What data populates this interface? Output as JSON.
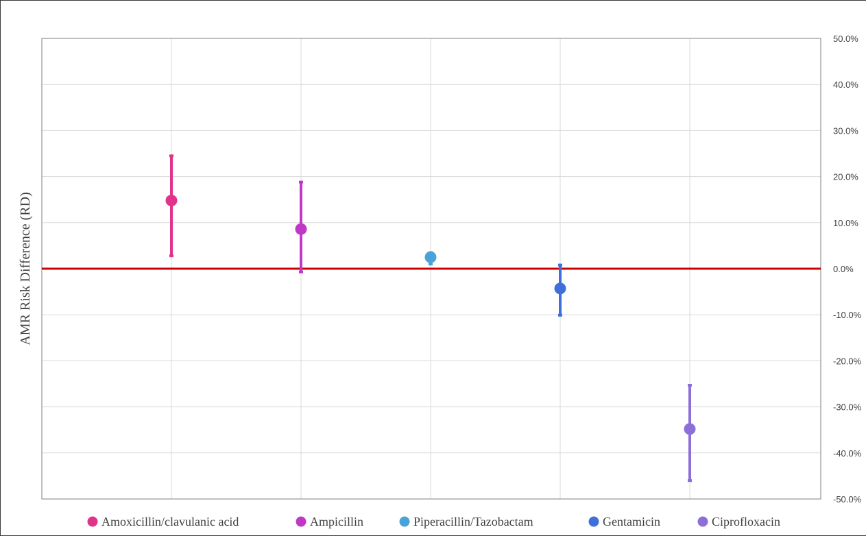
{
  "chart_data": {
    "type": "scatter",
    "title": "",
    "xlabel": "",
    "ylabel": "AMR Risk Difference (RD)",
    "ylim": [
      -0.5,
      0.5
    ],
    "y_ticks": [
      0.5,
      0.4,
      0.3,
      0.2,
      0.1,
      0.0,
      -0.1,
      -0.2,
      -0.3,
      -0.4,
      -0.5
    ],
    "y_tick_labels": [
      "50.0%",
      "40.0%",
      "30.0%",
      "20.0%",
      "10.0%",
      "0.0%",
      "-10.0%",
      "-20.0%",
      "-30.0%",
      "-40.0%",
      "-50.0%"
    ],
    "y_axis_position": "right",
    "grid": true,
    "reference_line": {
      "y": 0.0,
      "color": "#cc0000"
    },
    "legend_position": "bottom",
    "series": [
      {
        "name": "Amoxicillin/clavulanic acid",
        "x": 1,
        "value": 0.148,
        "lower": 0.028,
        "upper": 0.245,
        "color": "#e0338a"
      },
      {
        "name": "Ampicillin",
        "x": 2,
        "value": 0.086,
        "lower": -0.007,
        "upper": 0.188,
        "color": "#c039c6"
      },
      {
        "name": "Piperacillin/Tazobactam",
        "x": 3,
        "value": 0.025,
        "lower": 0.01,
        "upper": 0.035,
        "color": "#4aa3d8"
      },
      {
        "name": "Gentamicin",
        "x": 4,
        "value": -0.043,
        "lower": -0.101,
        "upper": 0.008,
        "color": "#3f6fd8"
      },
      {
        "name": "Ciprofloxacin",
        "x": 5,
        "value": -0.348,
        "lower": -0.46,
        "upper": -0.253,
        "color": "#8c70d8"
      }
    ]
  }
}
